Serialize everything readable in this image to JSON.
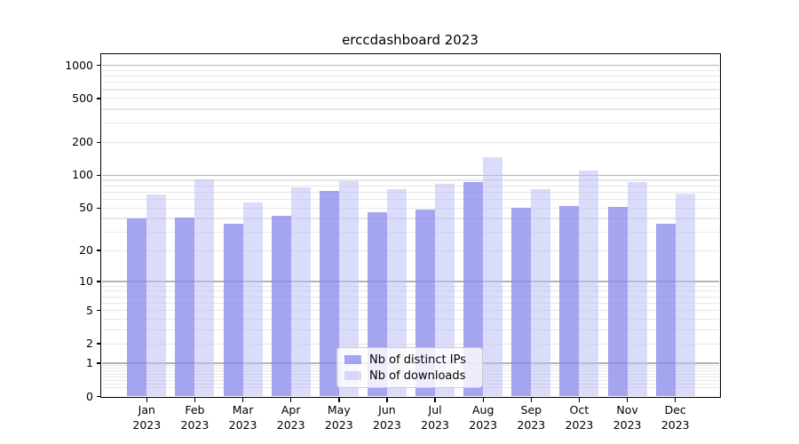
{
  "title": "erccdashboard 2023",
  "chart_data": {
    "type": "bar",
    "title": "erccdashboard 2023",
    "categories": [
      "Jan 2023",
      "Feb 2023",
      "Mar 2023",
      "Apr 2023",
      "May 2023",
      "Jun 2023",
      "Jul 2023",
      "Aug 2023",
      "Sep 2023",
      "Oct 2023",
      "Nov 2023",
      "Dec 2023"
    ],
    "series": [
      {
        "name": "Nb of distinct IPs",
        "color": "#a5a5ef",
        "rgba": "rgba(138,138,235,0.77)",
        "values": [
          40,
          41,
          36,
          42,
          72,
          46,
          48,
          86,
          50,
          52,
          51,
          36
        ]
      },
      {
        "name": "Nb of downloads",
        "color": "#d9d9f8",
        "rgba": "rgba(190,190,246,0.55)",
        "values": [
          67,
          92,
          56,
          77,
          89,
          74,
          84,
          145,
          75,
          111,
          86,
          68
        ]
      }
    ],
    "xlabel": "",
    "ylabel": "",
    "yscale": "log1p",
    "ylim": [
      0,
      1260
    ],
    "y_ticks": [
      1000,
      500,
      200,
      100,
      50,
      20,
      10,
      5,
      2,
      1,
      0
    ],
    "grid": {
      "on": true,
      "major_ticks": [
        1,
        10,
        100,
        1000
      ],
      "major_color": "#b3b3b3",
      "minor_color": "#e7e7e7"
    },
    "legend_position": "lower center"
  },
  "legend": {
    "items": [
      {
        "label": "Nb of distinct IPs",
        "color": "#a5a5ef"
      },
      {
        "label": "Nb of downloads",
        "color": "#d9d9f8"
      }
    ]
  }
}
